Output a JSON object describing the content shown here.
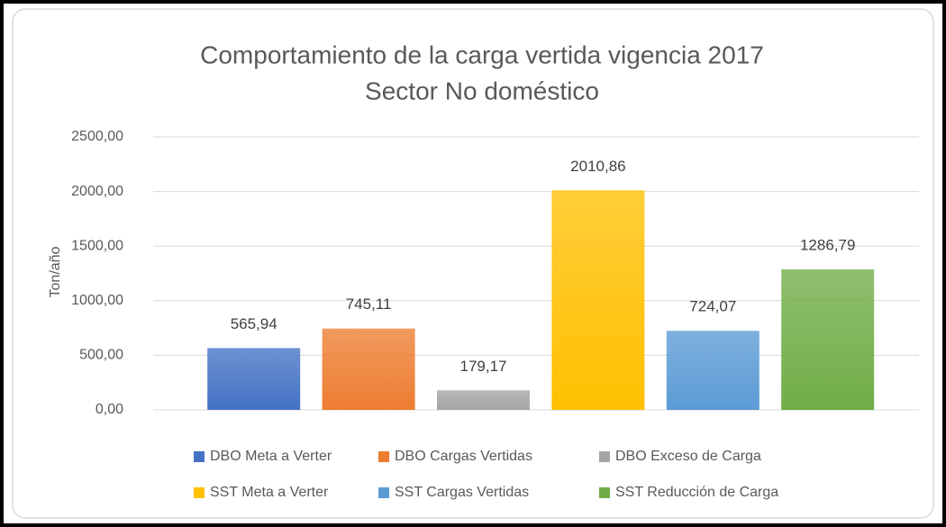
{
  "chart_data": {
    "type": "bar",
    "title": "Comportamiento de la carga vertida vigencia 2017",
    "subtitle": "Sector No doméstico",
    "y_label": "Ton/año",
    "series": [
      {
        "name": "DBO Meta a Verter",
        "color": "#4472c4",
        "values": [
          565.94
        ],
        "value_labels": [
          "565,94"
        ]
      },
      {
        "name": "DBO Cargas Vertidas",
        "color": "#ed7d31",
        "values": [
          745.11
        ],
        "value_labels": [
          "745,11"
        ]
      },
      {
        "name": "DBO Exceso de Carga",
        "color": "#a5a5a5",
        "values": [
          179.17
        ],
        "value_labels": [
          "179,17"
        ]
      },
      {
        "name": "SST Meta a Verter",
        "color": "#ffc000",
        "values": [
          2010.86
        ],
        "value_labels": [
          "2010,86"
        ]
      },
      {
        "name": "SST Cargas Vertidas",
        "color": "#5b9bd5",
        "values": [
          724.07
        ],
        "value_labels": [
          "724,07"
        ]
      },
      {
        "name": "SST Reducción de Carga",
        "color": "#70ad47",
        "values": [
          1286.79
        ],
        "value_labels": [
          "1286,79"
        ]
      }
    ],
    "ylim": [
      0,
      2500
    ],
    "yticks": [
      {
        "value": 0,
        "label": "0,00"
      },
      {
        "value": 500,
        "label": "500,00"
      },
      {
        "value": 1000,
        "label": "1000,00"
      },
      {
        "value": 1500,
        "label": "1500,00"
      },
      {
        "value": 2000,
        "label": "2000,00"
      },
      {
        "value": 2500,
        "label": "2500,00"
      }
    ],
    "grid": true,
    "legend": "bottom"
  }
}
